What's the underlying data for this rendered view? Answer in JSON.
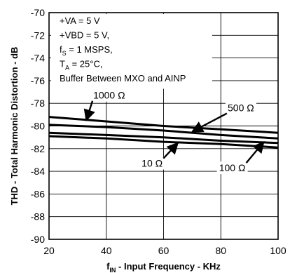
{
  "chart_data": {
    "type": "line",
    "xlabel": {
      "main": "f",
      "sub": "IN",
      "rest": " - Input Frequency - KHz"
    },
    "ylabel": "THD - Total Harmonic Distortion - dB",
    "xlim": [
      20,
      100
    ],
    "ylim": [
      -90,
      -70
    ],
    "xticks": [
      20,
      40,
      60,
      80,
      100
    ],
    "yticks": [
      -70,
      -72,
      -74,
      -76,
      -78,
      -80,
      -82,
      -84,
      -86,
      -88,
      -90
    ],
    "grid": true,
    "conditions": [
      {
        "main": "+VA = 5 V"
      },
      {
        "main": "+VBD = 5 V,"
      },
      {
        "main": "f",
        "sub": "S",
        "rest": " = 1 MSPS,"
      },
      {
        "main": "T",
        "sub": "A",
        "rest": " = 25°C,"
      },
      {
        "main": "Buffer Between MXO and AINP"
      }
    ],
    "series": [
      {
        "name": "1000 Ω",
        "x": [
          20,
          40,
          60,
          80,
          100
        ],
        "y": [
          -79.2,
          -79.6,
          -80.0,
          -80.3,
          -80.6
        ]
      },
      {
        "name": "500 Ω",
        "x": [
          20,
          40,
          60,
          80,
          100
        ],
        "y": [
          -79.9,
          -80.1,
          -80.4,
          -80.8,
          -81.1
        ]
      },
      {
        "name": "100 Ω",
        "x": [
          20,
          40,
          60,
          80,
          100
        ],
        "y": [
          -80.6,
          -80.8,
          -81.0,
          -81.3,
          -81.5
        ]
      },
      {
        "name": "10 Ω",
        "x": [
          20,
          40,
          60,
          80,
          100
        ],
        "y": [
          -80.9,
          -81.1,
          -81.4,
          -81.6,
          -81.9
        ]
      }
    ],
    "annotations": [
      {
        "series": "1000 Ω",
        "text": "1000 Ω",
        "x": 41,
        "y": -77.6,
        "arrow_to": [
          33,
          -79.5
        ]
      },
      {
        "series": "500 Ω",
        "text": "500 Ω",
        "x": 87,
        "y": -78.7,
        "arrow_to": [
          70,
          -80.5
        ]
      },
      {
        "series": "10 Ω",
        "text": "10 Ω",
        "x": 56,
        "y": -83.6,
        "arrow_to": [
          65,
          -81.5
        ]
      },
      {
        "series": "100 Ω",
        "text": "100 Ω",
        "x": 84,
        "y": -84.0,
        "arrow_to": [
          95,
          -81.4
        ]
      }
    ]
  }
}
